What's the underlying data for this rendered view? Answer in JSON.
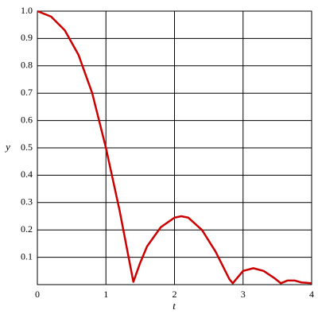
{
  "chart_data": {
    "type": "line",
    "x_label": "t",
    "y_label": "y",
    "x": [
      0,
      0.2,
      0.4,
      0.6,
      0.8,
      1.0,
      1.2,
      1.3,
      1.4,
      1.5,
      1.6,
      1.8,
      2.0,
      2.1,
      2.2,
      2.4,
      2.6,
      2.8,
      2.85,
      3.0,
      3.15,
      3.3,
      3.45,
      3.55,
      3.65,
      3.75,
      3.85,
      4.0
    ],
    "series": [
      {
        "color": "#cc0000",
        "values": [
          1.0,
          0.98,
          0.93,
          0.84,
          0.7,
          0.5,
          0.27,
          0.14,
          0.01,
          0.08,
          0.14,
          0.21,
          0.245,
          0.25,
          0.245,
          0.2,
          0.12,
          0.02,
          0.005,
          0.05,
          0.06,
          0.05,
          0.025,
          0.005,
          0.015,
          0.015,
          0.008,
          0.005
        ]
      }
    ],
    "xlim": [
      0,
      4
    ],
    "xticks": [
      0,
      1,
      2,
      3,
      4
    ],
    "ylim": [
      0,
      1
    ],
    "yticks": [
      0.1,
      0.2,
      0.3,
      0.4,
      0.5,
      0.6,
      0.7,
      0.8,
      0.9,
      {
        "value": 1,
        "label": "1.0"
      }
    ],
    "grid": true
  }
}
